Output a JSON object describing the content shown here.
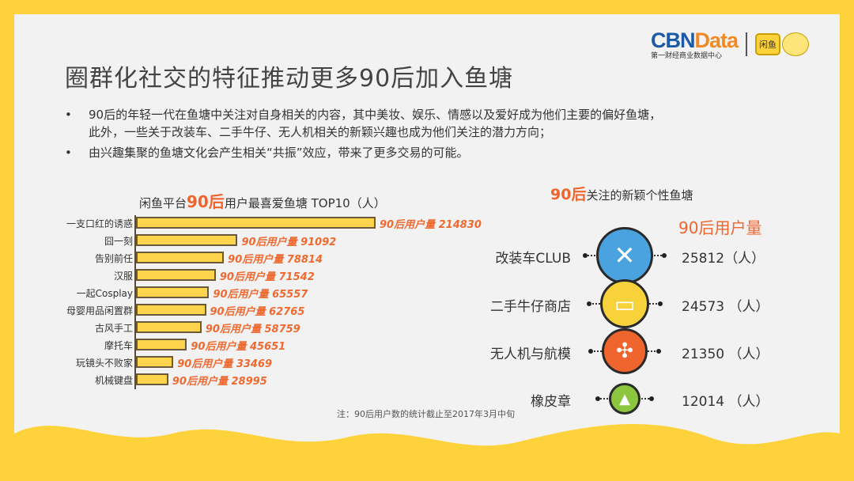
{
  "title": "圈群化社交的特征推动更多90后加入鱼塘",
  "bullets": [
    "90后的年轻一代在鱼塘中关注对自身相关的内容，其中美妆、娱乐、情感以及爱好成为他们主要的偏好鱼塘，",
    "此外，一些关于改装车、二手牛仔、无人机相关的新颖兴趣也成为他们关注的潜力方向；",
    "由兴趣集聚的鱼塘文化会产生相关“共振”效应，带来了更多交易的可能。"
  ],
  "bullet_symbol": "•",
  "logo": {
    "brand_a": "CBN",
    "brand_b": "Data",
    "subtitle": "第一财经商业数据中心",
    "partner": "闲鱼"
  },
  "colors": {
    "accent": "#f0642d",
    "bar": "#fdd44b",
    "border": "#fdd23a",
    "blue": "#1c5aa8"
  },
  "chart_data": {
    "type": "bar",
    "orientation": "horizontal",
    "title_prefix": "闲鱼平台",
    "title_highlight": "90后",
    "title_suffix": "用户最喜爱鱼塘 TOP10（人）",
    "label_prefix": "90后用户量",
    "categories": [
      "一支口红的诱惑",
      "囧一刻",
      "告别前任",
      "汉服",
      "一起Cosplay",
      "母婴用品闲置群",
      "古风手工",
      "摩托车",
      "玩镜头不败家",
      "机械键盘"
    ],
    "values": [
      214830,
      91092,
      78814,
      71542,
      65557,
      62765,
      58759,
      45651,
      33469,
      28995
    ]
  },
  "note": "注：90后用户数的统计截止至2017年3月中旬",
  "right": {
    "title_highlight": "90后",
    "title_suffix": "关注的新颖个性鱼塘",
    "header": "90后用户量",
    "items": [
      {
        "name": "改装车CLUB",
        "value": "25812（人）",
        "icon": "wrench-hammer-icon",
        "color": "#4aa3df"
      },
      {
        "name": "二手牛仔商店",
        "value": "24573 （人）",
        "icon": "jeans-pocket-icon",
        "color": "#f7d23a"
      },
      {
        "name": "无人机与航模",
        "value": "21350 （人）",
        "icon": "drone-icon",
        "color": "#f0642d"
      },
      {
        "name": "橡皮章",
        "value": "12014 （人）",
        "icon": "stamp-icon",
        "color": "#8cc63f"
      }
    ]
  }
}
